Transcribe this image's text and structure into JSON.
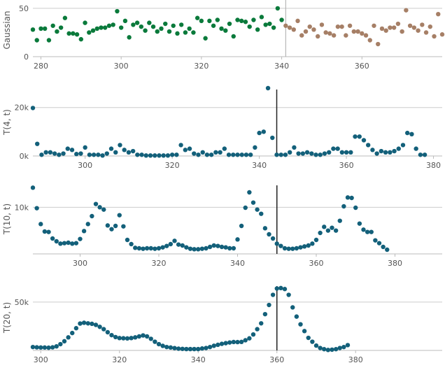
{
  "chart_data": [
    {
      "type": "scatter",
      "ylabel": "Gaussian",
      "xlim": [
        278,
        380
      ],
      "ylim": [
        0,
        55
      ],
      "x_ticks": [
        "280",
        "300",
        "320",
        "340",
        "360"
      ],
      "y_ticks": [
        "0",
        "50"
      ],
      "x_tick_values": [
        280,
        300,
        320,
        340,
        360
      ],
      "y_tick_values": [
        0,
        50
      ],
      "grid": "horizontal",
      "marker_line_x": 341,
      "series": [
        {
          "color": "#0a7a3b",
          "x": [
            278,
            279,
            280,
            281,
            282,
            283,
            284,
            285,
            286,
            287,
            288,
            289,
            290,
            291,
            292,
            293,
            294,
            295,
            296,
            297,
            298,
            299,
            300,
            301,
            302,
            303,
            304,
            305,
            306,
            307,
            308,
            309,
            310,
            311,
            312,
            313,
            314,
            315,
            316,
            317,
            318,
            319,
            320,
            321,
            322,
            323,
            324,
            325,
            326,
            327,
            328,
            329,
            330,
            331,
            332,
            333,
            334,
            335,
            336,
            337,
            338,
            339,
            340
          ],
          "y": [
            28,
            17,
            29,
            29,
            17,
            32,
            26,
            30,
            40,
            24,
            24,
            23,
            18,
            35,
            25,
            27,
            29,
            30,
            30,
            32,
            33,
            47,
            30,
            37,
            20,
            33,
            35,
            31,
            27,
            35,
            31,
            26,
            29,
            34,
            26,
            32,
            24,
            33,
            25,
            29,
            25,
            40,
            37,
            19,
            37,
            32,
            38,
            29,
            27,
            34,
            21,
            38,
            37,
            36,
            31,
            38,
            28,
            41,
            33,
            34,
            30,
            50,
            38
          ]
        },
        {
          "color": "#a67f66",
          "x": [
            341,
            342,
            343,
            344,
            345,
            346,
            347,
            348,
            349,
            350,
            351,
            352,
            353,
            354,
            355,
            356,
            357,
            358,
            359,
            360,
            361,
            362,
            363,
            364,
            365,
            366,
            367,
            368,
            369,
            370,
            371,
            372,
            373,
            374,
            375,
            376,
            377,
            378,
            379,
            380
          ],
          "y": [
            32,
            30,
            28,
            37,
            22,
            26,
            31,
            28,
            21,
            33,
            25,
            24,
            22,
            31,
            31,
            22,
            32,
            26,
            26,
            24,
            22,
            17,
            32,
            13,
            29,
            27,
            30,
            30,
            34,
            26,
            48,
            32,
            30,
            27,
            33,
            25,
            31,
            21,
            44,
            23
          ]
        }
      ]
    },
    {
      "type": "scatter",
      "ylabel": "T(4, t)",
      "xlim": [
        288,
        382
      ],
      "ylim": [
        0,
        28000
      ],
      "x_ticks": [
        "300",
        "320",
        "340",
        "360",
        "380"
      ],
      "y_ticks": [
        "0k",
        "20k"
      ],
      "x_tick_values": [
        300,
        320,
        340,
        360,
        380
      ],
      "y_tick_values": [
        0,
        20000
      ],
      "grid": "horizontal",
      "marker_line_x": 344,
      "series": [
        {
          "color": "#13607a",
          "x": [
            288,
            289,
            290,
            291,
            292,
            293,
            294,
            295,
            296,
            297,
            298,
            299,
            300,
            301,
            302,
            303,
            304,
            305,
            306,
            307,
            308,
            309,
            310,
            311,
            312,
            313,
            314,
            315,
            316,
            317,
            318,
            319,
            320,
            321,
            322,
            323,
            324,
            325,
            326,
            327,
            328,
            329,
            330,
            331,
            332,
            333,
            334,
            335,
            336,
            337,
            338,
            339,
            340,
            341,
            342,
            343,
            344,
            345,
            346,
            347,
            348,
            349,
            350,
            351,
            352,
            353,
            354,
            355,
            356,
            357,
            358,
            359,
            360,
            361,
            362,
            363,
            364,
            365,
            366,
            367,
            368,
            369,
            370,
            371,
            372,
            373,
            374,
            375,
            376,
            377,
            378
          ],
          "y": [
            19800,
            5000,
            500,
            1500,
            1500,
            1000,
            500,
            1000,
            3000,
            2500,
            800,
            1000,
            3500,
            500,
            500,
            500,
            200,
            1000,
            3000,
            1500,
            4500,
            2500,
            1500,
            2000,
            500,
            500,
            200,
            200,
            200,
            200,
            200,
            200,
            500,
            500,
            4500,
            2500,
            3000,
            1000,
            500,
            1500,
            500,
            500,
            1500,
            1500,
            3000,
            500,
            500,
            500,
            500,
            500,
            500,
            3500,
            9500,
            10000,
            28000,
            7500,
            500,
            500,
            500,
            1500,
            3500,
            1000,
            1000,
            1500,
            1000,
            500,
            500,
            1000,
            1500,
            3000,
            3000,
            1500,
            1500,
            1500,
            8000,
            8000,
            6500,
            4500,
            2500,
            1000,
            2000,
            1500,
            1500,
            2000,
            3000,
            4500,
            9500,
            9000,
            3000,
            500,
            500
          ]
        }
      ]
    },
    {
      "type": "scatter",
      "ylabel": "T(10, t)",
      "xlim": [
        288,
        392
      ],
      "ylim": [
        0,
        15000
      ],
      "x_ticks": [
        "300",
        "320",
        "340",
        "360",
        "380"
      ],
      "y_ticks": [
        "10k"
      ],
      "x_tick_values": [
        300,
        320,
        340,
        360,
        380
      ],
      "y_tick_values": [
        10000
      ],
      "grid": "horizontal",
      "marker_line_x": 350,
      "series": [
        {
          "color": "#13607a",
          "x": [
            288,
            289,
            290,
            291,
            292,
            293,
            294,
            295,
            296,
            297,
            298,
            299,
            300,
            301,
            302,
            303,
            304,
            305,
            306,
            307,
            308,
            309,
            310,
            311,
            312,
            313,
            314,
            315,
            316,
            317,
            318,
            319,
            320,
            321,
            322,
            323,
            324,
            325,
            326,
            327,
            328,
            329,
            330,
            331,
            332,
            333,
            334,
            335,
            336,
            337,
            338,
            339,
            340,
            341,
            342,
            343,
            344,
            345,
            346,
            347,
            348,
            349,
            350,
            351,
            352,
            353,
            354,
            355,
            356,
            357,
            358,
            359,
            360,
            361,
            362,
            363,
            364,
            365,
            366,
            367,
            368,
            369,
            370,
            371,
            372,
            373,
            374,
            375,
            376,
            377,
            378
          ],
          "y": [
            14200,
            9800,
            6400,
            4800,
            4700,
            3300,
            2700,
            2200,
            2300,
            2400,
            2200,
            2300,
            3200,
            4900,
            6400,
            8100,
            10700,
            10000,
            9500,
            6100,
            5300,
            6000,
            8300,
            5900,
            3000,
            2100,
            1300,
            1200,
            1100,
            1200,
            1200,
            1100,
            1200,
            1400,
            1700,
            2100,
            2800,
            2000,
            1800,
            1400,
            1100,
            1000,
            1000,
            1100,
            1200,
            1500,
            1800,
            1700,
            1500,
            1400,
            1200,
            1200,
            3100,
            6000,
            9900,
            13200,
            11000,
            9500,
            8600,
            5500,
            4200,
            3300,
            2200,
            1700,
            1200,
            1100,
            1100,
            1200,
            1400,
            1600,
            1800,
            2200,
            3000,
            4500,
            5800,
            5000,
            5600,
            5000,
            7100,
            10200,
            12100,
            12000,
            9900,
            6500,
            5200,
            4700,
            4700,
            2900,
            2300,
            1500,
            900
          ]
        }
      ]
    },
    {
      "type": "scatter",
      "ylabel": "T(20, t)",
      "xlim": [
        298,
        402
      ],
      "ylim": [
        0,
        68000
      ],
      "x_ticks": [
        "300",
        "320",
        "340",
        "360",
        "380"
      ],
      "y_ticks": [
        "50k"
      ],
      "x_tick_values": [
        300,
        320,
        340,
        360,
        380
      ],
      "y_tick_values": [
        50000
      ],
      "grid": "horizontal",
      "marker_line_x": 360,
      "series": [
        {
          "color": "#13607a",
          "x": [
            298,
            299,
            300,
            301,
            302,
            303,
            304,
            305,
            306,
            307,
            308,
            309,
            310,
            311,
            312,
            313,
            314,
            315,
            316,
            317,
            318,
            319,
            320,
            321,
            322,
            323,
            324,
            325,
            326,
            327,
            328,
            329,
            330,
            331,
            332,
            333,
            334,
            335,
            336,
            337,
            338,
            339,
            340,
            341,
            342,
            343,
            344,
            345,
            346,
            347,
            348,
            349,
            350,
            351,
            352,
            353,
            354,
            355,
            356,
            357,
            358,
            359,
            360,
            361,
            362,
            363,
            364,
            365,
            366,
            367,
            368,
            369,
            370,
            371,
            372,
            373,
            374,
            375,
            376,
            377,
            378
          ],
          "y": [
            3500,
            3200,
            3000,
            3000,
            2800,
            3200,
            4200,
            6500,
            9500,
            13500,
            18000,
            23000,
            27800,
            28600,
            28000,
            27500,
            26400,
            24400,
            22000,
            18800,
            15800,
            13800,
            12800,
            12600,
            12400,
            12800,
            13500,
            14500,
            15500,
            14500,
            12000,
            9000,
            6500,
            4700,
            3500,
            3000,
            2400,
            1800,
            1600,
            1400,
            1400,
            1400,
            1400,
            2000,
            2500,
            3500,
            4800,
            5800,
            6800,
            7500,
            8200,
            8700,
            8600,
            8800,
            10500,
            12500,
            16500,
            22000,
            28000,
            37500,
            47000,
            57500,
            64000,
            64500,
            63500,
            57500,
            44500,
            35000,
            27000,
            20000,
            13000,
            9000,
            5000,
            2500,
            1300,
            500,
            800,
            1300,
            2500,
            3500,
            5500
          ]
        }
      ]
    }
  ]
}
